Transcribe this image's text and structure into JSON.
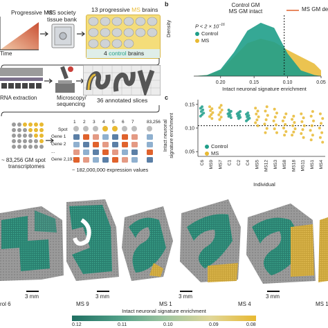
{
  "panel_a": {
    "label_progressive_ms": "Progressive MS",
    "label_ms_society": "MS society",
    "label_tissue_bank": "tissue bank",
    "label_time": "Time",
    "label_brains_pre": "13 progressive ",
    "label_brains_ms": "MS",
    "label_brains_post": " brains",
    "label_control_pre": "4 ",
    "label_control_word": "control",
    "label_control_post": " brains",
    "label_rna": "RNA extraction",
    "label_microscopy": "Microscopy/",
    "label_sequencing": "sequencing",
    "label_slices": "36 annotated slices",
    "label_spot": "Spot",
    "spot_numbers": [
      "1",
      "2",
      "3",
      "4",
      "5",
      "6",
      "7",
      "83,256"
    ],
    "gene_labels": [
      "Gene 1",
      "Gene 2",
      "...",
      "Gene 2,191"
    ],
    "label_transcriptomes_1": "~ 83,256 GM spot",
    "label_transcriptomes_2": "transcriptomes",
    "label_expression": "~ 182,000,000 expression values"
  },
  "panel_b": {
    "letter": "b",
    "title_1": "Control GM",
    "title_2": "MS GM intact",
    "legend_top": "MS GM de",
    "pvalue": "P < 2 × 10",
    "pvalue_exp": "−16",
    "ylabel": "Density",
    "xlabel": "Intact neuronal signature enrichment",
    "legend": [
      "Control",
      "MS"
    ]
  },
  "panel_c": {
    "letter": "c",
    "ylabel_1": "Intact neuronal",
    "ylabel_2": "signature enrichment",
    "xlabel": "Individual",
    "legend": [
      "Control",
      "MS"
    ]
  },
  "panel_d": {
    "labels": [
      "rol 6",
      "MS 9",
      "MS 1",
      "MS 4",
      "MS 1"
    ],
    "scale_bar": "3 mm",
    "colorbar_label": "Intact neuronal signature enrichment",
    "colorbar_ticks": [
      "0.12",
      "0.11",
      "0.10",
      "0.09",
      "0.08"
    ]
  },
  "colors": {
    "control": "#1f9e89",
    "ms": "#e8b931",
    "orange": "#e0622c",
    "slate": "#5b7fa6"
  },
  "chart_data": [
    {
      "type": "area",
      "x": [
        0.24,
        0.22,
        0.2,
        0.18,
        0.16,
        0.14,
        0.12,
        0.1,
        0.08,
        0.06,
        0.05
      ],
      "xlim": [
        0.24,
        0.05
      ],
      "tick_labels": [
        "0.20",
        "0.15",
        "0.10",
        "0.05"
      ],
      "threshold": 0.105,
      "series": [
        {
          "name": "Control",
          "values": [
            0.0,
            0.2,
            1.2,
            4.2,
            8.0,
            9.4,
            8.5,
            4.0,
            1.0,
            0.2,
            0.0
          ]
        },
        {
          "name": "MS",
          "values": [
            0.0,
            0.2,
            1.0,
            3.4,
            5.8,
            6.6,
            6.0,
            4.6,
            3.4,
            2.2,
            1.0
          ]
        }
      ]
    },
    {
      "type": "scatter",
      "categories": [
        "C6",
        "MS9",
        "MS7",
        "C1",
        "C2",
        "C4",
        "MS5",
        "MS12",
        "MS3",
        "MS8",
        "MS18",
        "MS11",
        "MS1",
        "MS4"
      ],
      "y_tick_labels": [
        "0.15",
        "0.10",
        "0.05"
      ],
      "threshold": 0.105,
      "group": [
        "Control",
        "MS",
        "MS",
        "Control",
        "Control",
        "Control",
        "MS",
        "MS",
        "MS",
        "MS",
        "MS",
        "MS",
        "MS",
        "MS"
      ],
      "ranges": [
        [
          0.125,
          0.145
        ],
        [
          0.12,
          0.145
        ],
        [
          0.118,
          0.148
        ],
        [
          0.122,
          0.138
        ],
        [
          0.12,
          0.135
        ],
        [
          0.115,
          0.132
        ],
        [
          0.105,
          0.142
        ],
        [
          0.09,
          0.145
        ],
        [
          0.09,
          0.14
        ],
        [
          0.085,
          0.13
        ],
        [
          0.085,
          0.125
        ],
        [
          0.08,
          0.13
        ],
        [
          0.075,
          0.135
        ],
        [
          0.07,
          0.13
        ]
      ]
    }
  ]
}
